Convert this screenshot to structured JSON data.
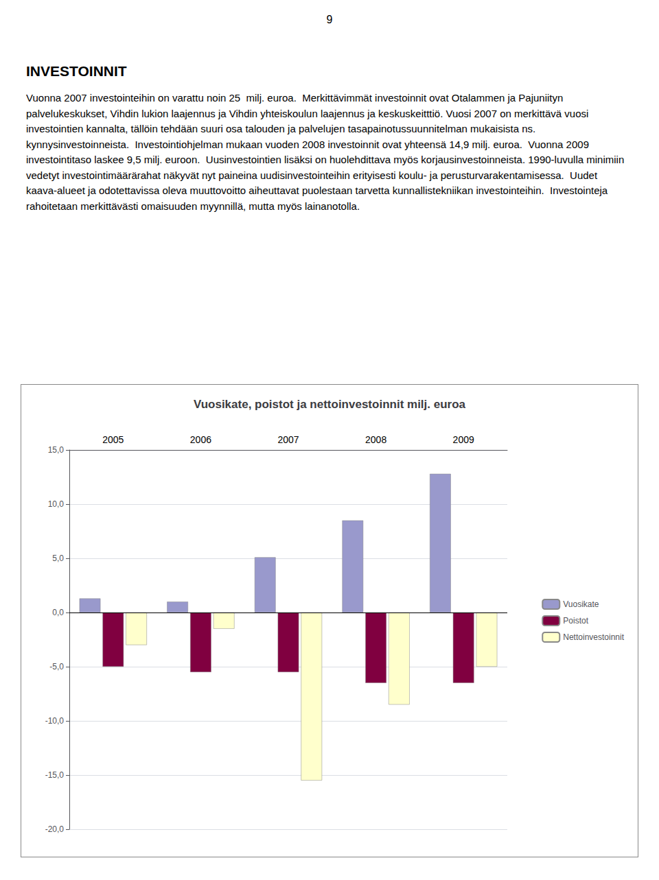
{
  "chart_data": {
    "type": "bar",
    "title": "Vuosikate, poistot ja nettoinvestoinnit milj. euroa",
    "categories": [
      "2005",
      "2006",
      "2007",
      "2008",
      "2009"
    ],
    "series": [
      {
        "name": "Vuosikate",
        "color": "#9999cc",
        "values": [
          1.3,
          1.0,
          5.1,
          8.5,
          12.8
        ]
      },
      {
        "name": "Poistot",
        "color": "#800040",
        "values": [
          -5.0,
          -5.5,
          -5.5,
          -6.5,
          -6.5
        ]
      },
      {
        "name": "Nettoinvestoinnit",
        "color": "#ffffcc",
        "values": [
          -3.0,
          -1.5,
          -15.5,
          -8.5,
          -5.0
        ]
      }
    ],
    "ylim": [
      -20.0,
      15.0
    ],
    "yticks": [
      {
        "value": -20.0,
        "label": "-20,0"
      },
      {
        "value": -15.0,
        "label": "-15,0"
      },
      {
        "value": -10.0,
        "label": "-10,0"
      },
      {
        "value": -5.0,
        "label": "-5,0"
      },
      {
        "value": 0.0,
        "label": "0,0"
      },
      {
        "value": 5.0,
        "label": "5,0"
      },
      {
        "value": 10.0,
        "label": "10,0"
      },
      {
        "value": 15.0,
        "label": "15,0"
      }
    ],
    "grid": true,
    "legend": "right",
    "annotations": [
      "9",
      "INVESTOINNIT",
      "Vuonna 2007 investointeihin on varattu noin 25  milj. euroa.  Merkittävimmät investoinnit ovat Otalammen ja Pajuniityn palvelukeskukset, Vihdin lukion laajennus ja Vihdin yhteiskoulun laajennus ja keskuskeitttiö. Vuosi 2007 on merkittävä vuosi investointien kannalta, tällöin tehdään suuri osa talouden ja palvelujen tasapainotussuunnitelman mukaisista ns. kynnysinvestoinneista.  Investointiohjelman mukaan vuoden 2008 investoinnit ovat yhteensä 14,9 milj. euroa.  Vuonna 2009 investointitaso laskee 9,5 milj. euroon.  Uusinvestointien lisäksi on huolehdittava myös korjausinvestoinneista. 1990-luvulla minimiin vedetyt investointimäärärahat näkyvät nyt paineina uudisinvestointeihin erityisesti koulu- ja perusturvarakentamisessa.  Uudet kaava-alueet ja odotettavissa oleva muuttovoitto aiheuttavat puolestaan tarvetta kunnallistekniikan investointeihin.  Investointeja rahoitetaan merkittävästi omaisuuden myynnillä, mutta myös lainanotolla."
    ]
  }
}
